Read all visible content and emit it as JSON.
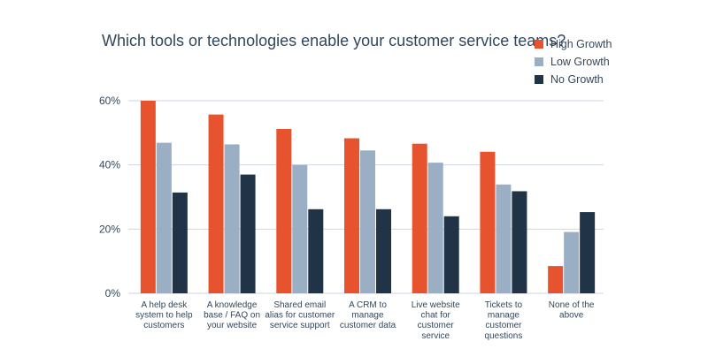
{
  "chart_data": {
    "type": "bar",
    "title": "Which tools or technologies enable your customer service teams?",
    "categories": [
      [
        "A help desk",
        "system to help",
        "customers"
      ],
      [
        "A knowledge",
        "base / FAQ on",
        "your website"
      ],
      [
        "Shared email",
        "alias for customer",
        "service support"
      ],
      [
        "A CRM to",
        "manage",
        "customer data"
      ],
      [
        "Live website",
        "chat for",
        "customer",
        "service"
      ],
      [
        "Tickets to",
        "manage",
        "customer",
        "questions"
      ],
      [
        "None of the",
        "above"
      ]
    ],
    "series": [
      {
        "name": "High Growth",
        "color": "#e8532f",
        "values": [
          60,
          55.7,
          51.2,
          48.3,
          46.6,
          44.1,
          8.5
        ]
      },
      {
        "name": "Low Growth",
        "color": "#9aafc4",
        "values": [
          46.9,
          46.4,
          40,
          44.5,
          40.7,
          33.9,
          19.1
        ]
      },
      {
        "name": "No Growth",
        "color": "#213346",
        "values": [
          31.4,
          37,
          26.2,
          26.2,
          24,
          31.8,
          25.3
        ]
      }
    ],
    "yticks": [
      0,
      20,
      40,
      60
    ],
    "ytick_labels": [
      "0%",
      "20%",
      "40%",
      "60%"
    ],
    "ylim": [
      0,
      60
    ],
    "xlabel": "",
    "ylabel": "",
    "legend_position": "top-right",
    "grid": true
  }
}
